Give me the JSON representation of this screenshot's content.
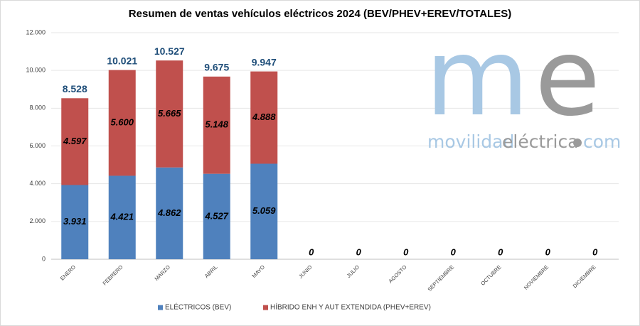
{
  "chart_data": {
    "type": "stacked_bar",
    "title": "Resumen de ventas vehículos eléctricos 2024 (BEV/PHEV+EREV/TOTALES)",
    "categories": [
      "ENERO",
      "FEBRERO",
      "MARZO",
      "ABRIL",
      "MAYO",
      "JUNIO",
      "JULIO",
      "AGOSTO",
      "SEPTIEMBRE",
      "OCTUBRE",
      "NOVIEMBRE",
      "DICIEMBRE"
    ],
    "series": [
      {
        "name": "ELÉCTRICOS (BEV)",
        "color": "#4f81bd",
        "values": [
          3931,
          4421,
          4862,
          4527,
          5059,
          0,
          0,
          0,
          0,
          0,
          0,
          0
        ],
        "value_labels": [
          "3.931",
          "4.421",
          "4.862",
          "4.527",
          "5.059",
          "0",
          "0",
          "0",
          "0",
          "0",
          "0",
          "0"
        ]
      },
      {
        "name": "HÍBRIDO ENH Y AUT EXTENDIDA (PHEV+EREV)",
        "color": "#c0504d",
        "values": [
          4597,
          5600,
          5665,
          5148,
          4888,
          0,
          0,
          0,
          0,
          0,
          0,
          0
        ],
        "value_labels": [
          "4.597",
          "5.600",
          "5.665",
          "5.148",
          "4.888",
          null,
          null,
          null,
          null,
          null,
          null,
          null
        ]
      }
    ],
    "totals": {
      "values": [
        8528,
        10021,
        10527,
        9675,
        9947,
        null,
        null,
        null,
        null,
        null,
        null,
        null
      ],
      "value_labels": [
        "8.528",
        "10.021",
        "10.527",
        "9.675",
        "9.947",
        null,
        null,
        null,
        null,
        null,
        null,
        null
      ],
      "color": "#1f4e79"
    },
    "ylim": [
      0,
      12000
    ],
    "yticks": [
      0,
      {
        "value": 2000,
        "label": "2.000"
      },
      {
        "value": 4000,
        "label": "4.000"
      },
      {
        "value": 6000,
        "label": "6.000"
      },
      {
        "value": 8000,
        "label": "8.000"
      },
      {
        "value": 10000,
        "label": "10.000"
      },
      {
        "value": 12000,
        "label": "12.000"
      }
    ],
    "grid": true,
    "legend": "bottom",
    "logo": {
      "mark": [
        "m",
        "e"
      ],
      "text": [
        "movilidad",
        "eléctrica",
        "com"
      ]
    }
  }
}
